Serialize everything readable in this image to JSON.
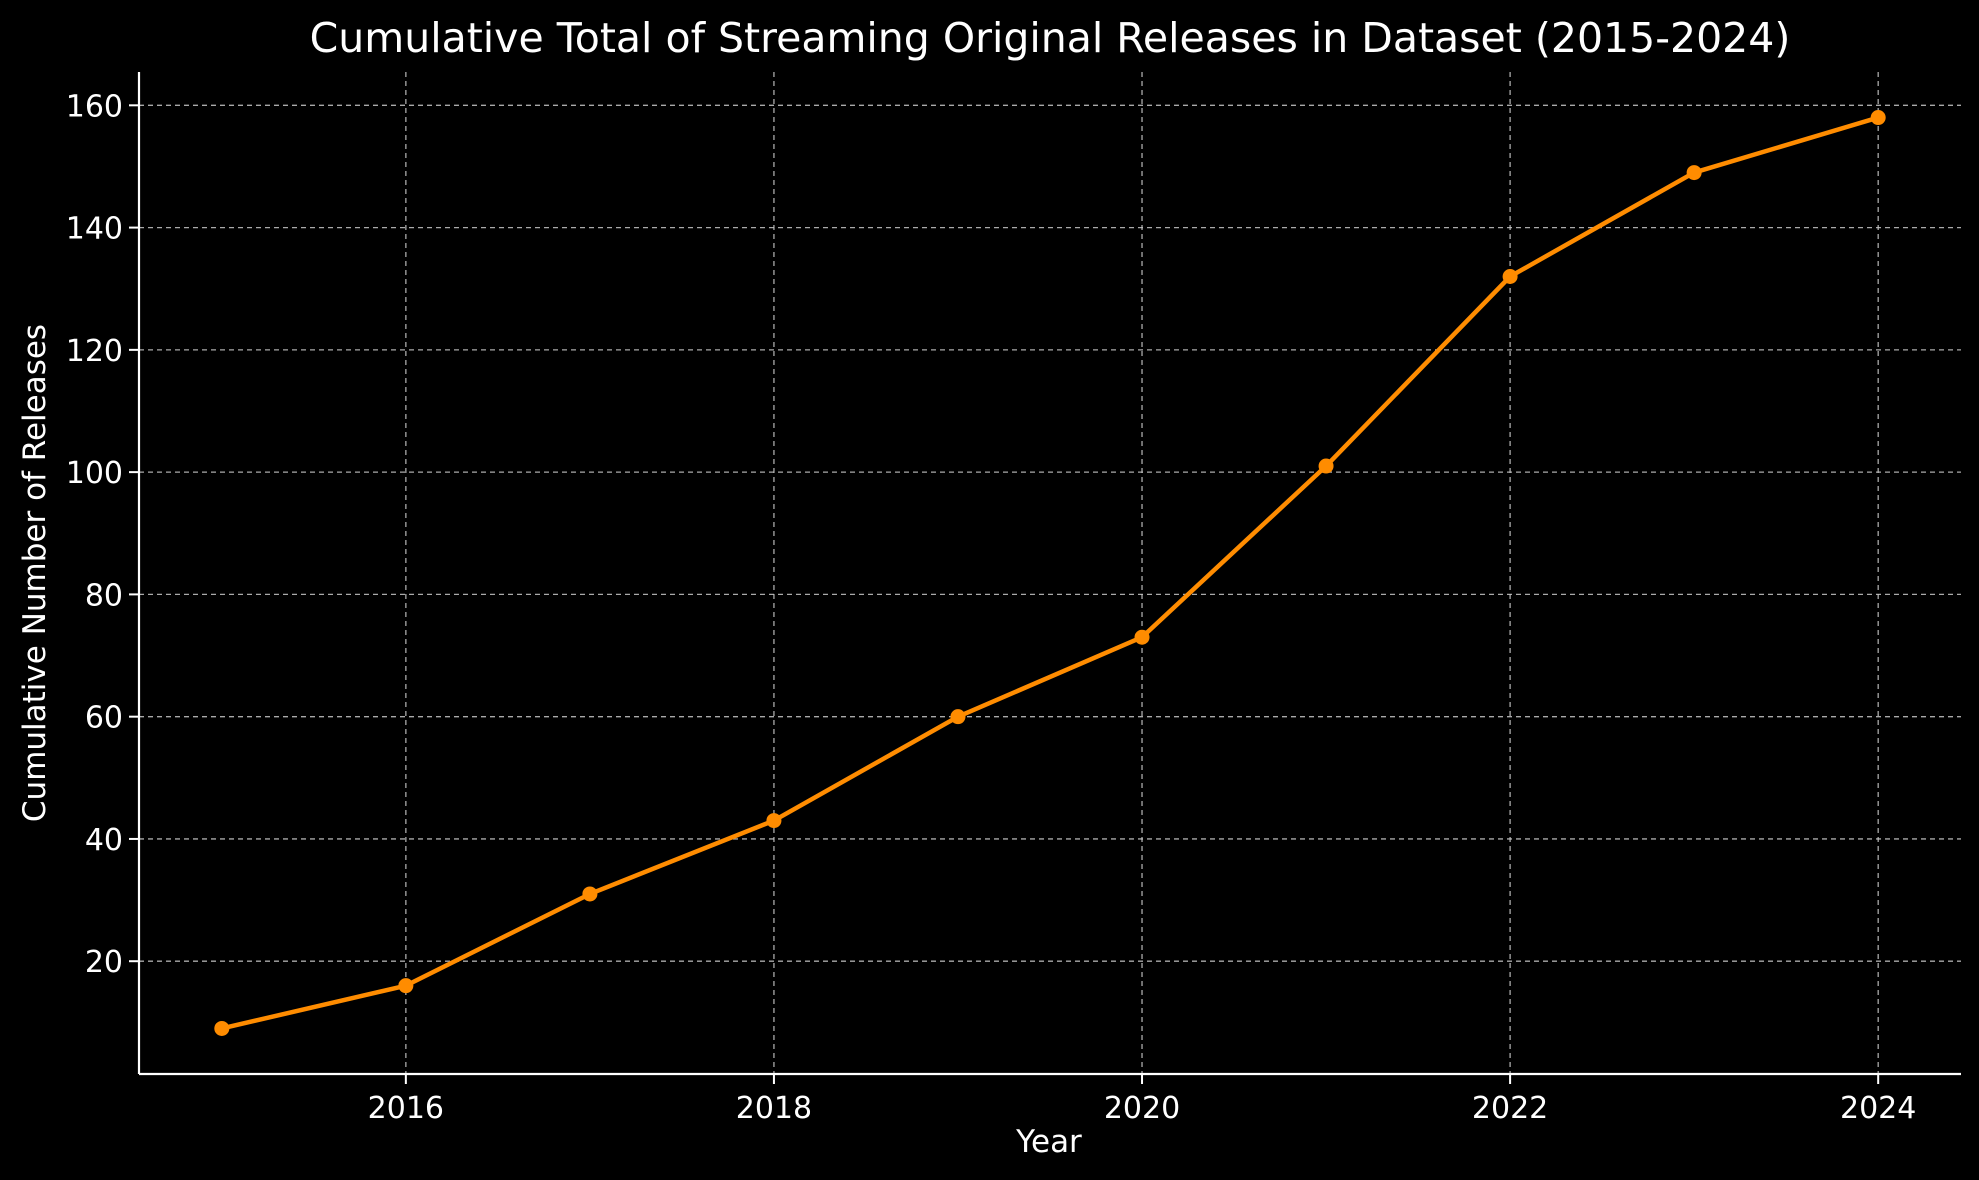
{
  "chart_data": {
    "type": "line",
    "title": "Cumulative Total of Streaming Original Releases in Dataset (2015-2024)",
    "xlabel": "Year",
    "ylabel": "Cumulative Number of Releases",
    "xlim": [
      2014.55,
      2024.45
    ],
    "ylim": [
      1.55,
      165.45
    ],
    "x_ticks": [
      "2016",
      "2018",
      "2020",
      "2022",
      "2024"
    ],
    "y_ticks": [
      "20",
      "40",
      "60",
      "80",
      "100",
      "120",
      "140",
      "160"
    ],
    "grid": true,
    "series": [
      {
        "x": [
          2015,
          2016,
          2017,
          2018,
          2019,
          2020,
          2021,
          2022,
          2023,
          2024
        ],
        "values": [
          9,
          16,
          31,
          43,
          60,
          73,
          101,
          132,
          149,
          158
        ],
        "color": "#ff8c00",
        "marker": "circle"
      }
    ]
  }
}
